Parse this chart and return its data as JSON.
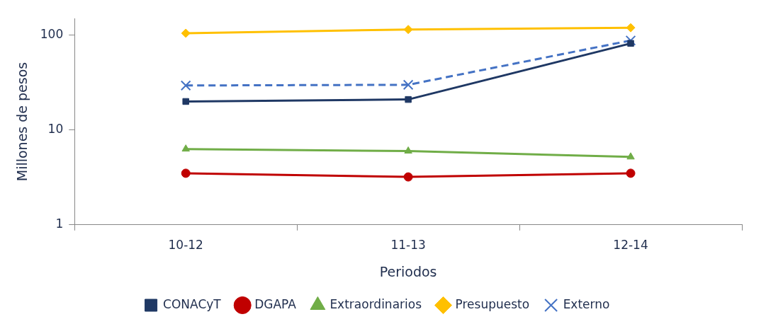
{
  "chart_data": {
    "type": "line",
    "xlabel": "Periodos",
    "ylabel": "Millones de pesos",
    "categories": [
      "10-12",
      "11-13",
      "12-14"
    ],
    "log": "y",
    "ylim": [
      1,
      150
    ],
    "yticks": [
      1,
      10,
      100
    ],
    "grid": false,
    "legend": "bottom",
    "series": [
      {
        "name": "CONACyT",
        "color": "#1f3864",
        "values": [
          20,
          21,
          82
        ],
        "marker": "square",
        "line_style": "solid"
      },
      {
        "name": "DGAPA",
        "color": "#c00000",
        "values": [
          3.5,
          3.2,
          3.5
        ],
        "marker": "circle",
        "line_style": "solid"
      },
      {
        "name": "Extraordinarios",
        "color": "#70ad47",
        "values": [
          6.3,
          6.0,
          5.2
        ],
        "marker": "triangle",
        "line_style": "solid"
      },
      {
        "name": "Presupuesto",
        "color": "#ffc000",
        "values": [
          105,
          115,
          120
        ],
        "marker": "diamond",
        "line_style": "solid"
      },
      {
        "name": "Externo",
        "color": "#4472c4",
        "values": [
          29.5,
          30,
          88
        ],
        "marker": "cross",
        "line_style": "dashed"
      }
    ]
  }
}
